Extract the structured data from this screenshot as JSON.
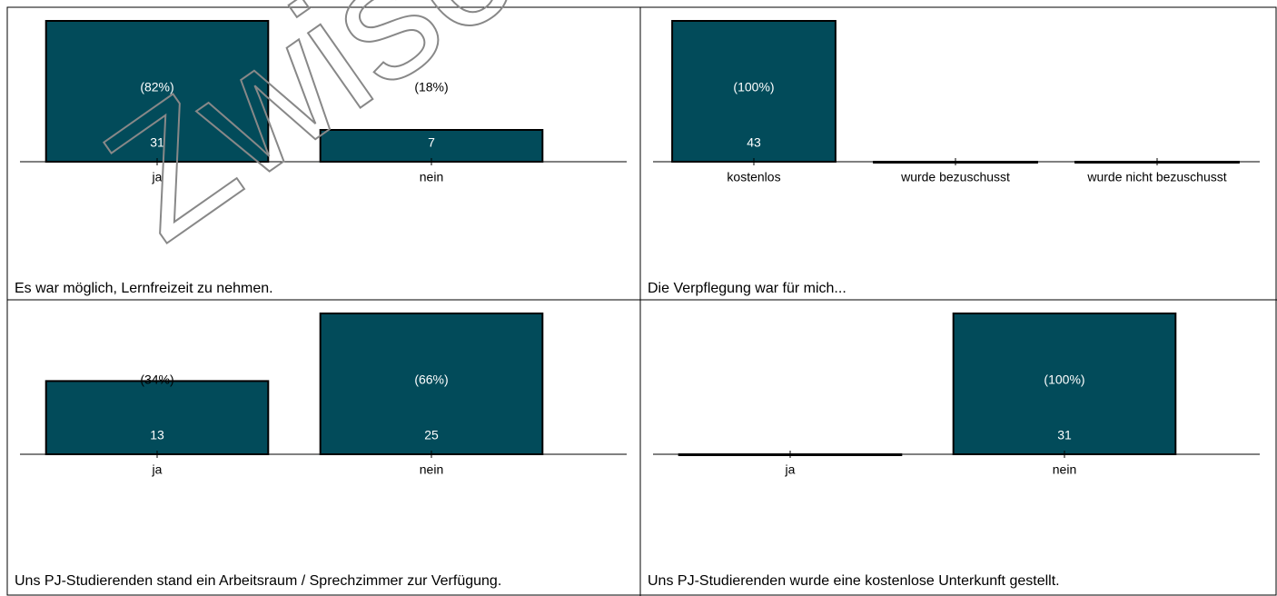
{
  "watermark": "Zwische",
  "chart_data": [
    {
      "type": "bar",
      "title": "Es war möglich, Lernfreizeit zu nehmen.",
      "categories": [
        "ja",
        "nein"
      ],
      "values": [
        31,
        7
      ],
      "percent_labels": [
        "(82%)",
        "(18%)"
      ],
      "ylim": [
        0,
        31
      ],
      "color": "#024b5a"
    },
    {
      "type": "bar",
      "title": "Die Verpflegung war für mich...",
      "categories": [
        "kostenlos",
        "wurde bezuschusst",
        "wurde nicht bezuschusst"
      ],
      "values": [
        43,
        0,
        0
      ],
      "percent_labels": [
        "(100%)",
        null,
        null
      ],
      "ylim": [
        0,
        43
      ],
      "color": "#024b5a"
    },
    {
      "type": "bar",
      "title": "Uns PJ-Studierenden stand ein Arbeitsraum / Sprechzimmer zur Verfügung.",
      "categories": [
        "ja",
        "nein"
      ],
      "values": [
        13,
        25
      ],
      "percent_labels": [
        "(34%)",
        "(66%)"
      ],
      "ylim": [
        0,
        25
      ],
      "color": "#024b5a"
    },
    {
      "type": "bar",
      "title": "Uns PJ-Studierenden wurde eine kostenlose Unterkunft gestellt.",
      "categories": [
        "ja",
        "nein"
      ],
      "values": [
        0,
        31
      ],
      "percent_labels": [
        null,
        "(100%)"
      ],
      "ylim": [
        0,
        31
      ],
      "color": "#024b5a"
    }
  ]
}
